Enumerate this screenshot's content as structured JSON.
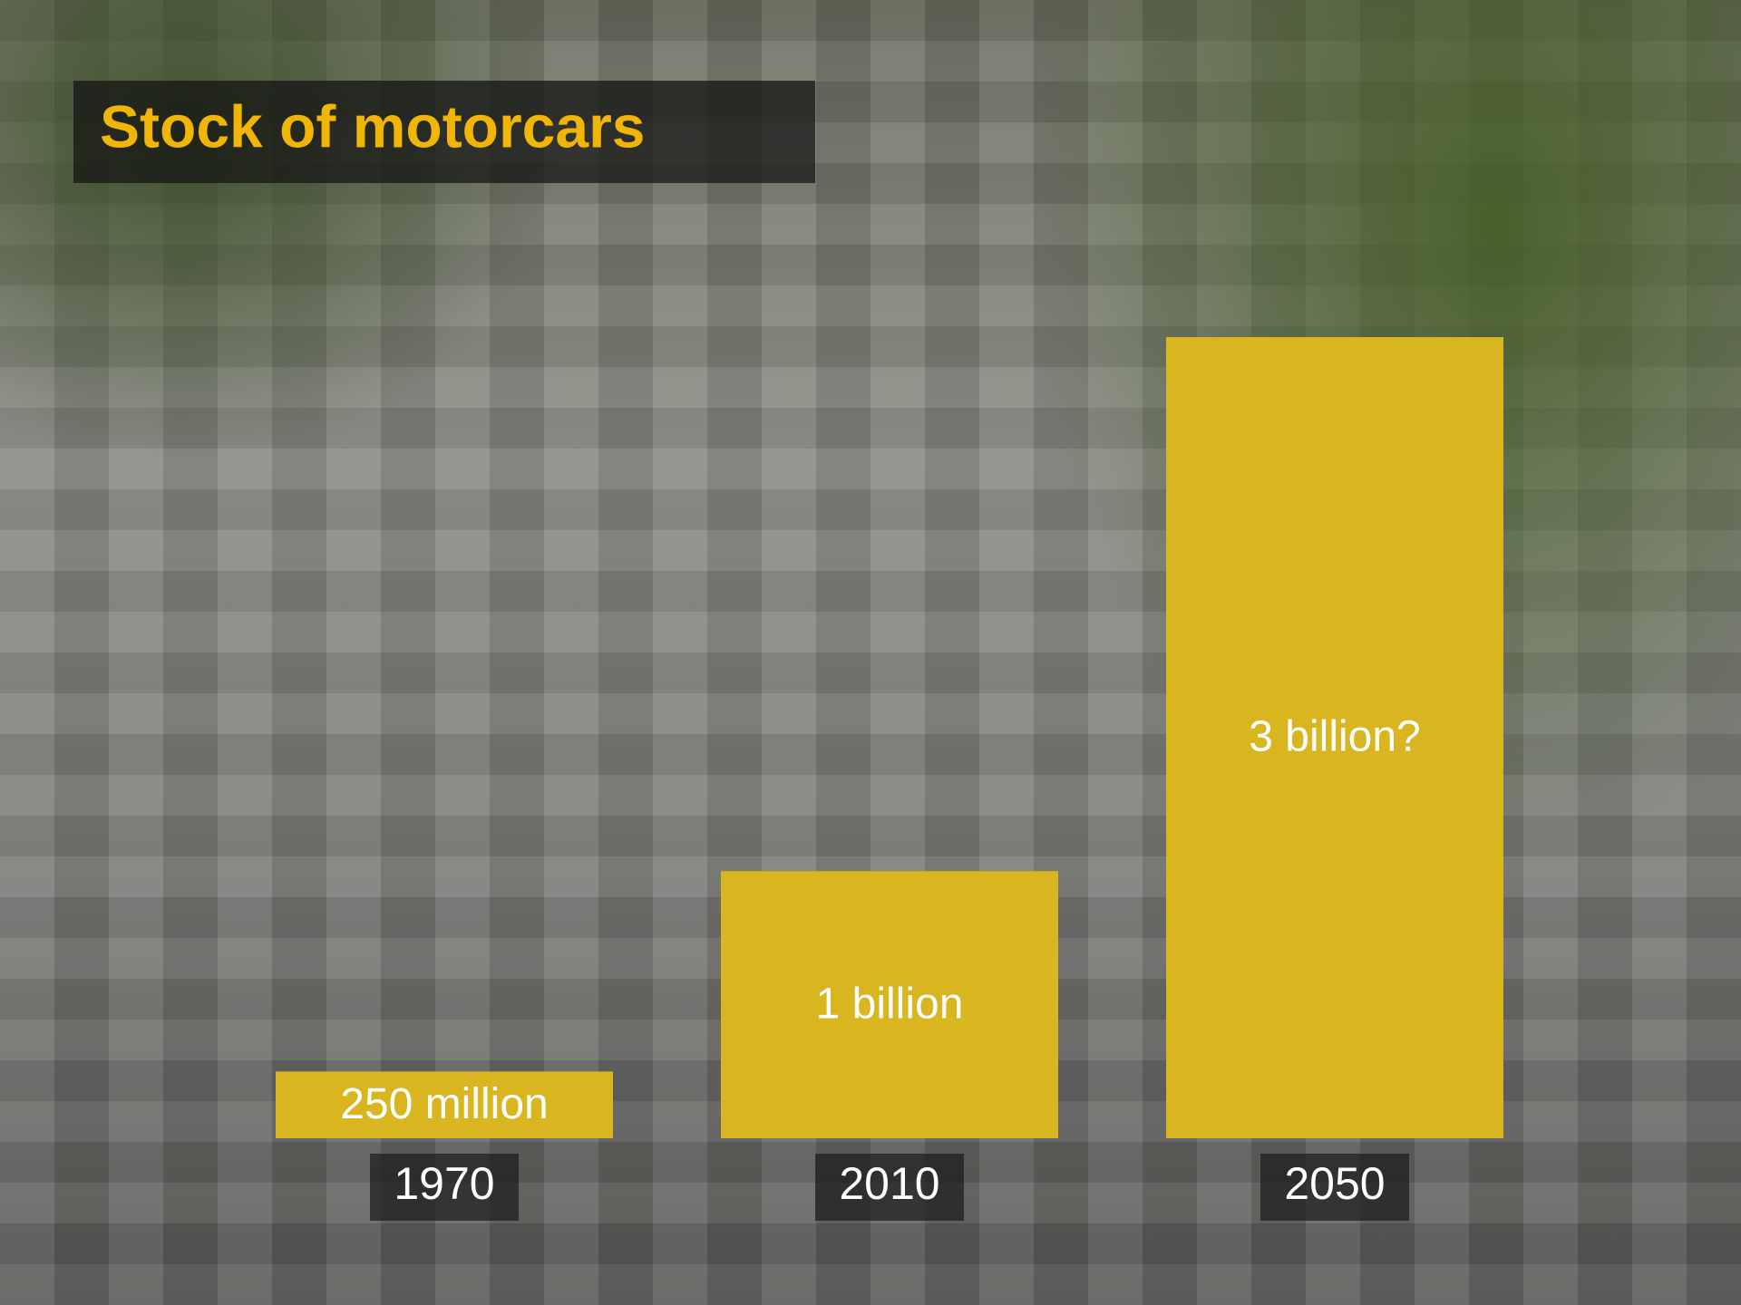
{
  "chart_data": {
    "type": "bar",
    "title": "Stock of motorcars",
    "categories": [
      "1970",
      "2010",
      "2050"
    ],
    "values": [
      250,
      1000,
      3000
    ],
    "value_labels": [
      "250 million",
      "1 billion",
      "3 billion?"
    ],
    "color": "#d9b620",
    "ylim": [
      0,
      3000
    ]
  }
}
